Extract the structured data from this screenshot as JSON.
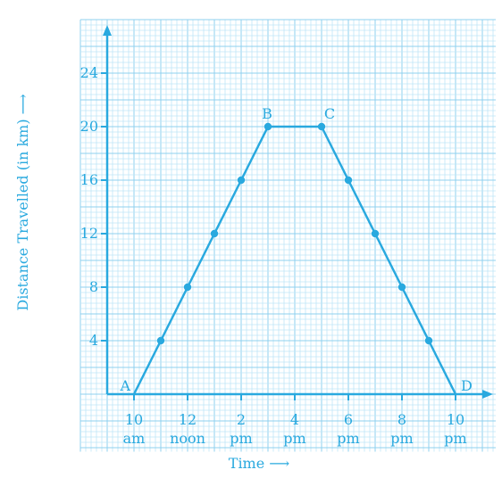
{
  "chart_data": {
    "type": "line",
    "x_ticks": [
      {
        "x": 10,
        "line1": "10",
        "line2": "am"
      },
      {
        "x": 12,
        "line1": "12",
        "line2": "noon"
      },
      {
        "x": 14,
        "line1": "2",
        "line2": "pm"
      },
      {
        "x": 16,
        "line1": "4",
        "line2": "pm"
      },
      {
        "x": 18,
        "line1": "6",
        "line2": "pm"
      },
      {
        "x": 20,
        "line1": "8",
        "line2": "pm"
      },
      {
        "x": 22,
        "line1": "10",
        "line2": "pm"
      }
    ],
    "y_ticks": [
      4,
      8,
      12,
      16,
      20,
      24
    ],
    "xlabel": "Time ⟶",
    "ylabel": "Distance Travelled (in km) ⟶",
    "xlim": [
      8,
      23.5
    ],
    "ylim": [
      -4.3,
      28
    ],
    "grid": true,
    "series": [
      {
        "x": [
          10,
          11,
          12,
          13,
          14,
          15,
          17,
          18,
          19,
          20,
          21,
          22
        ],
        "y": [
          0,
          4,
          8,
          12,
          16,
          20,
          20,
          16,
          12,
          8,
          4,
          0
        ]
      }
    ],
    "point_labels": [
      {
        "text": "A",
        "x": 10,
        "y": 0
      },
      {
        "text": "B",
        "x": 15,
        "y": 20
      },
      {
        "text": "C",
        "x": 17,
        "y": 20
      },
      {
        "text": "D",
        "x": 22,
        "y": 0
      }
    ],
    "colors": {
      "accent": "#29a9df",
      "grid_minor": "#bfe6f7",
      "grid_major": "#8fd1ef"
    }
  }
}
